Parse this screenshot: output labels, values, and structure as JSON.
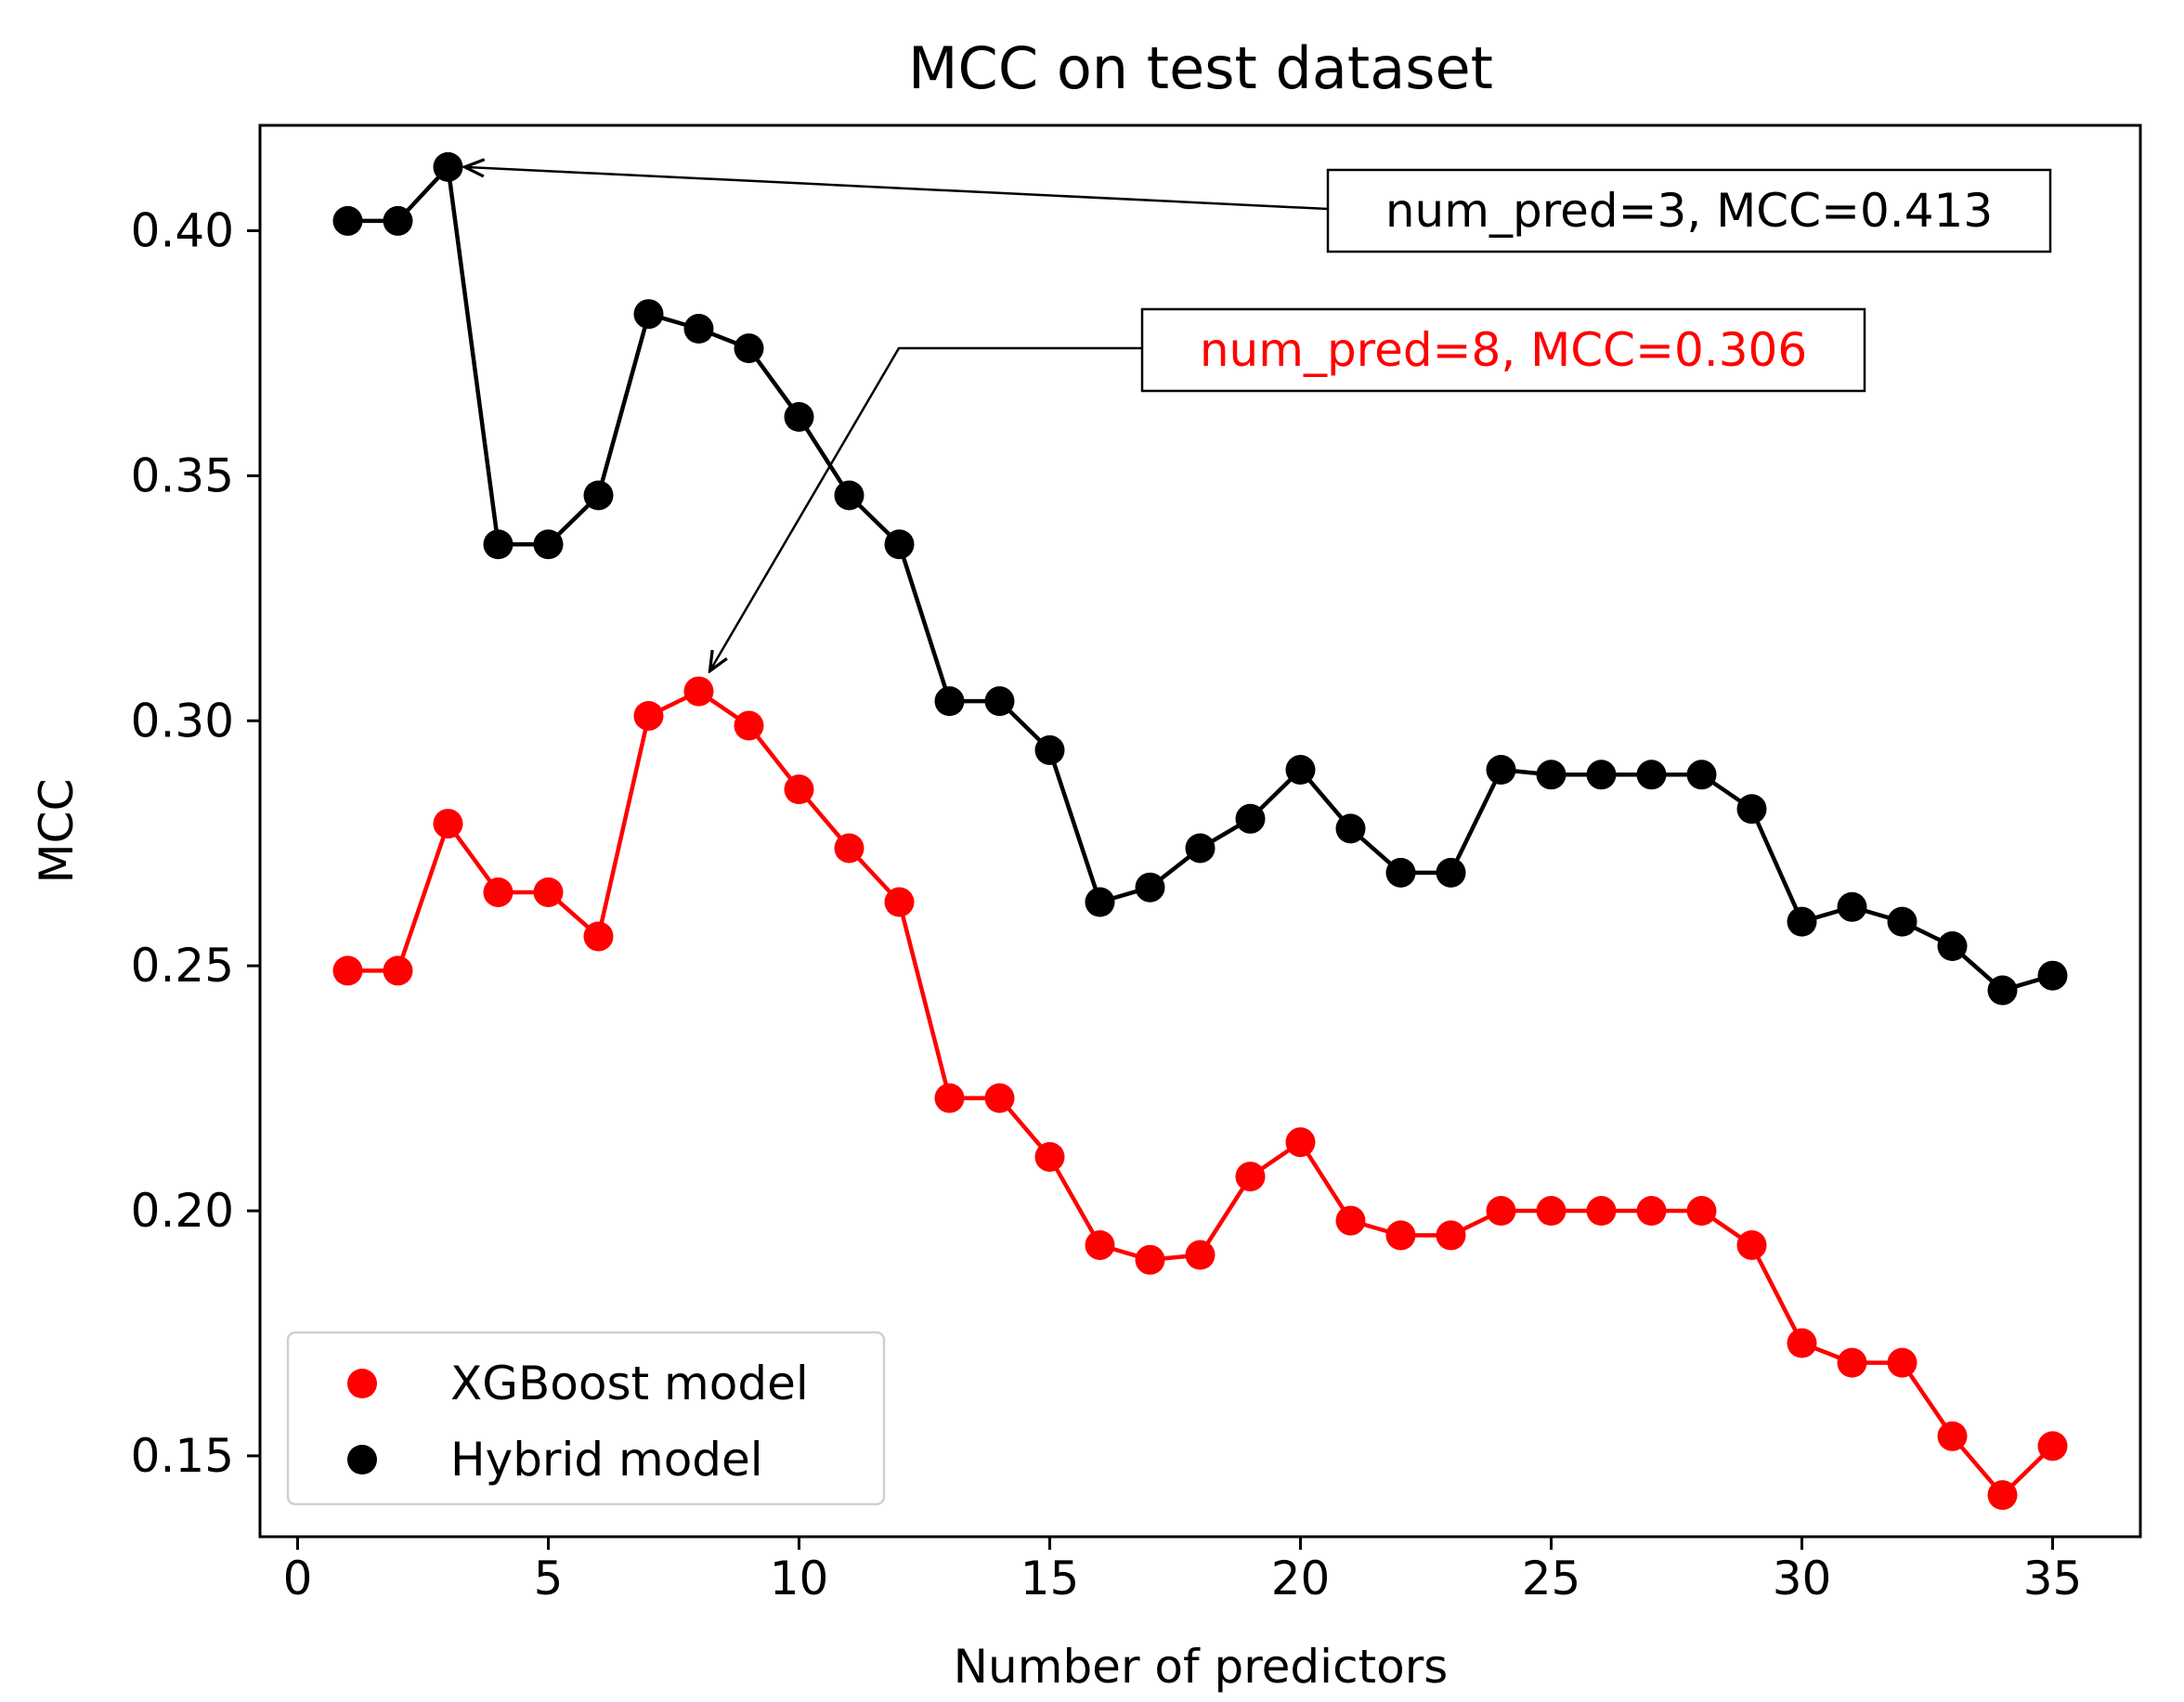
{
  "chart_data": {
    "type": "line",
    "title": "MCC on test dataset",
    "xlabel": "Number of predictors",
    "ylabel": "MCC",
    "xlim": [
      -0.75,
      36.75
    ],
    "ylim": [
      0.1335,
      0.4215
    ],
    "xticks": [
      0,
      5,
      10,
      15,
      20,
      25,
      30,
      35
    ],
    "xtick_labels": [
      "0",
      "5",
      "10",
      "15",
      "20",
      "25",
      "30",
      "35"
    ],
    "yticks": [
      0.15,
      0.2,
      0.25,
      0.3,
      0.35,
      0.4
    ],
    "ytick_labels": [
      "0.15",
      "0.20",
      "0.25",
      "0.30",
      "0.35",
      "0.40"
    ],
    "grid": false,
    "legend_position": "lower-left",
    "x": [
      1,
      2,
      3,
      4,
      5,
      6,
      7,
      8,
      9,
      10,
      11,
      12,
      13,
      14,
      15,
      16,
      17,
      18,
      19,
      20,
      21,
      22,
      23,
      24,
      25,
      26,
      27,
      28,
      29,
      30,
      31,
      32,
      33,
      34,
      35
    ],
    "series": [
      {
        "name": "XGBoost model",
        "color": "#ff0000",
        "values": [
          0.249,
          0.249,
          0.279,
          0.265,
          0.265,
          0.256,
          0.301,
          0.306,
          0.299,
          0.286,
          0.274,
          0.263,
          0.223,
          0.223,
          0.211,
          0.193,
          0.19,
          0.191,
          0.207,
          0.214,
          0.198,
          0.195,
          0.195,
          0.2,
          0.2,
          0.2,
          0.2,
          0.2,
          0.193,
          0.173,
          0.169,
          0.169,
          0.154,
          0.142,
          0.152
        ]
      },
      {
        "name": "Hybrid model",
        "color": "#000000",
        "values": [
          0.402,
          0.402,
          0.413,
          0.336,
          0.336,
          0.346,
          0.383,
          0.38,
          0.376,
          0.362,
          0.346,
          0.336,
          0.304,
          0.304,
          0.294,
          0.263,
          0.266,
          0.274,
          0.28,
          0.29,
          0.278,
          0.269,
          0.269,
          0.29,
          0.289,
          0.289,
          0.289,
          0.289,
          0.282,
          0.259,
          0.262,
          0.259,
          0.254,
          0.245,
          0.248
        ]
      }
    ],
    "annotations": [
      {
        "text": "num_pred=3, MCC=0.413",
        "color": "#000000",
        "point": {
          "x": 3,
          "y": 0.413
        }
      },
      {
        "text": "num_pred=8, MCC=0.306",
        "color": "#ff0000",
        "point": {
          "x": 8,
          "y": 0.306
        }
      }
    ]
  }
}
